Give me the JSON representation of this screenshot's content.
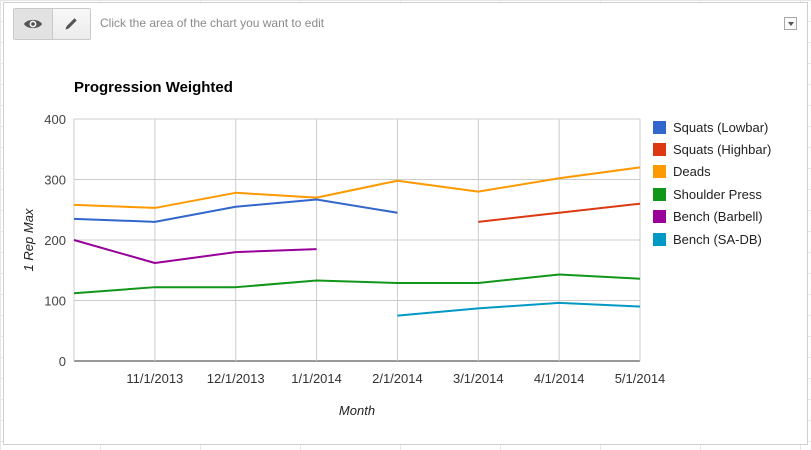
{
  "toolbar": {
    "hint": "Click the area of the chart you want to edit",
    "view_icon": "eye-icon",
    "edit_icon": "pencil-icon",
    "menu_icon": "dropdown-arrow-icon"
  },
  "chart_data": {
    "type": "line",
    "title": "Progression Weighted",
    "xlabel": "Month",
    "ylabel": "1 Rep Max",
    "ylim": [
      0,
      400
    ],
    "yticks": [
      0,
      100,
      200,
      300,
      400
    ],
    "xlim": [
      "2013-10-01",
      "2014-05-01"
    ],
    "x": [
      "10/1/2013",
      "11/1/2013",
      "12/1/2013",
      "1/1/2014",
      "2/1/2014",
      "3/1/2014",
      "4/1/2014",
      "5/1/2014"
    ],
    "xtick_labels": [
      "11/1/2013",
      "12/1/2013",
      "1/1/2014",
      "2/1/2014",
      "3/1/2014",
      "4/1/2014",
      "5/1/2014"
    ],
    "grid": true,
    "legend_position": "right",
    "series": [
      {
        "name": "Squats (Lowbar)",
        "color": "#3366cc",
        "values": [
          235,
          230,
          255,
          267,
          245,
          null,
          null,
          null
        ]
      },
      {
        "name": "Squats (Highbar)",
        "color": "#dc3912",
        "values": [
          null,
          null,
          null,
          null,
          null,
          230,
          245,
          260
        ]
      },
      {
        "name": "Deads",
        "color": "#ff9900",
        "values": [
          258,
          253,
          278,
          270,
          298,
          280,
          302,
          320
        ]
      },
      {
        "name": "Shoulder Press",
        "color": "#109618",
        "values": [
          112,
          122,
          122,
          133,
          129,
          129,
          143,
          136
        ]
      },
      {
        "name": "Bench (Barbell)",
        "color": "#990099",
        "values": [
          200,
          162,
          180,
          185,
          null,
          null,
          null,
          null
        ]
      },
      {
        "name": "Bench (SA-DB)",
        "color": "#0099c6",
        "values": [
          null,
          null,
          null,
          null,
          75,
          87,
          96,
          90
        ]
      }
    ]
  }
}
